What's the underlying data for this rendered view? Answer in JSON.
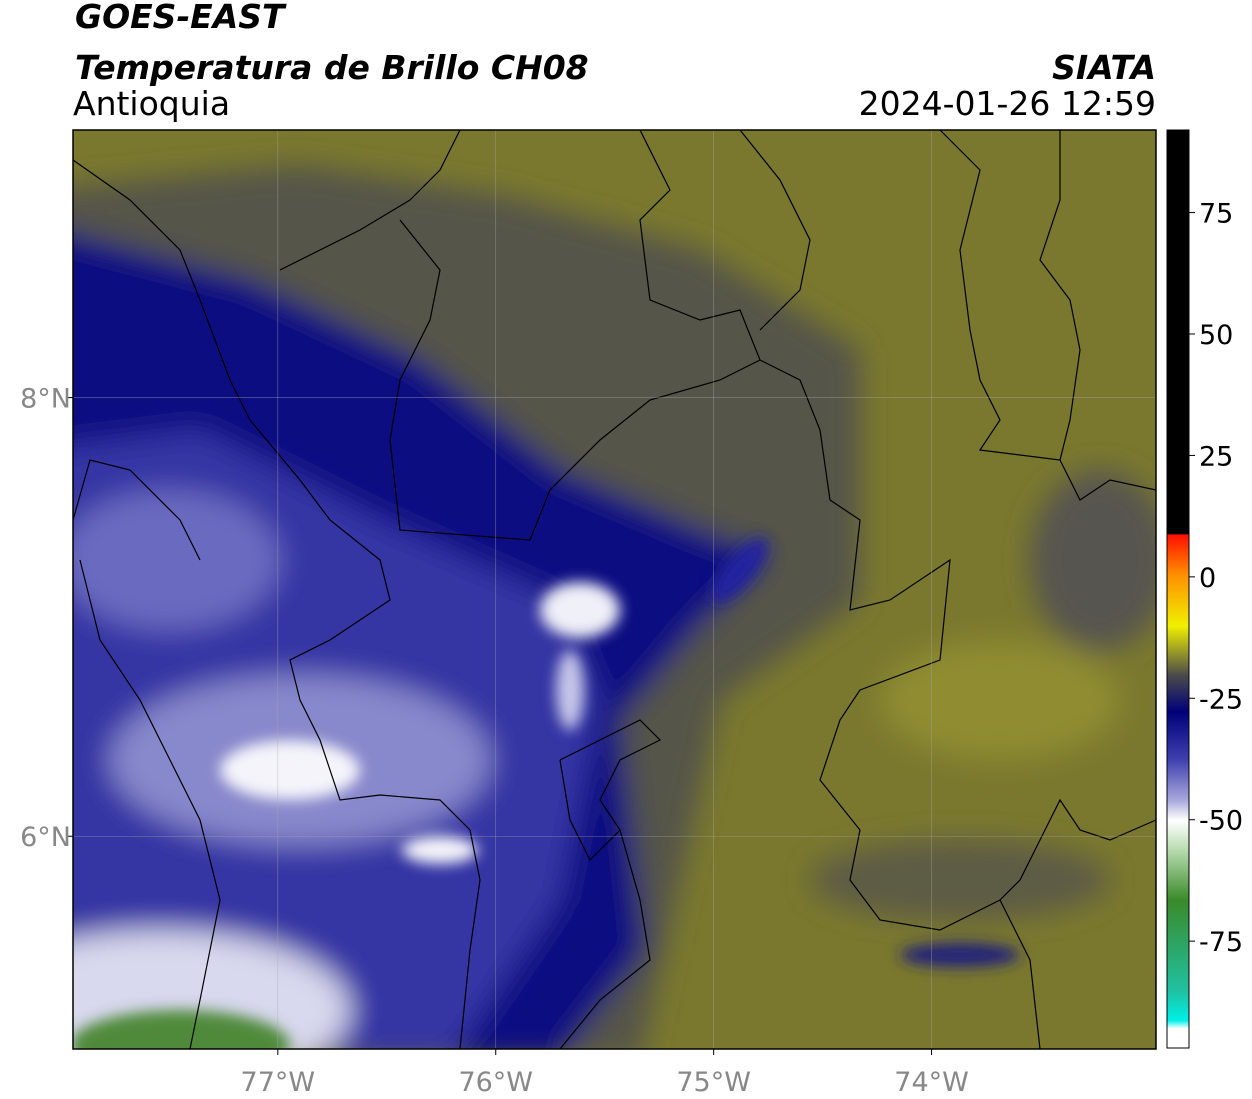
{
  "header": {
    "title": "GOES-EAST",
    "subtitle": "Temperatura de Brillo CH08",
    "region": "Antioquia",
    "source": "SIATA",
    "datetime": "2024-01-26 12:59"
  },
  "map": {
    "lon_range": [
      -77.94,
      -72.97
    ],
    "lat_range": [
      5.03,
      9.22
    ],
    "lon_ticks": [
      {
        "value": -77,
        "label": "77°W"
      },
      {
        "value": -76,
        "label": "76°W"
      },
      {
        "value": -75,
        "label": "75°W"
      },
      {
        "value": -74,
        "label": "74°W"
      }
    ],
    "lat_ticks": [
      {
        "value": 8,
        "label": "8°N"
      },
      {
        "value": 6,
        "label": "6°N"
      }
    ],
    "grid": true
  },
  "colorbar": {
    "range": [
      -97,
      92
    ],
    "ticks": [
      75,
      50,
      25,
      0,
      -25,
      -50,
      -75
    ]
  }
}
